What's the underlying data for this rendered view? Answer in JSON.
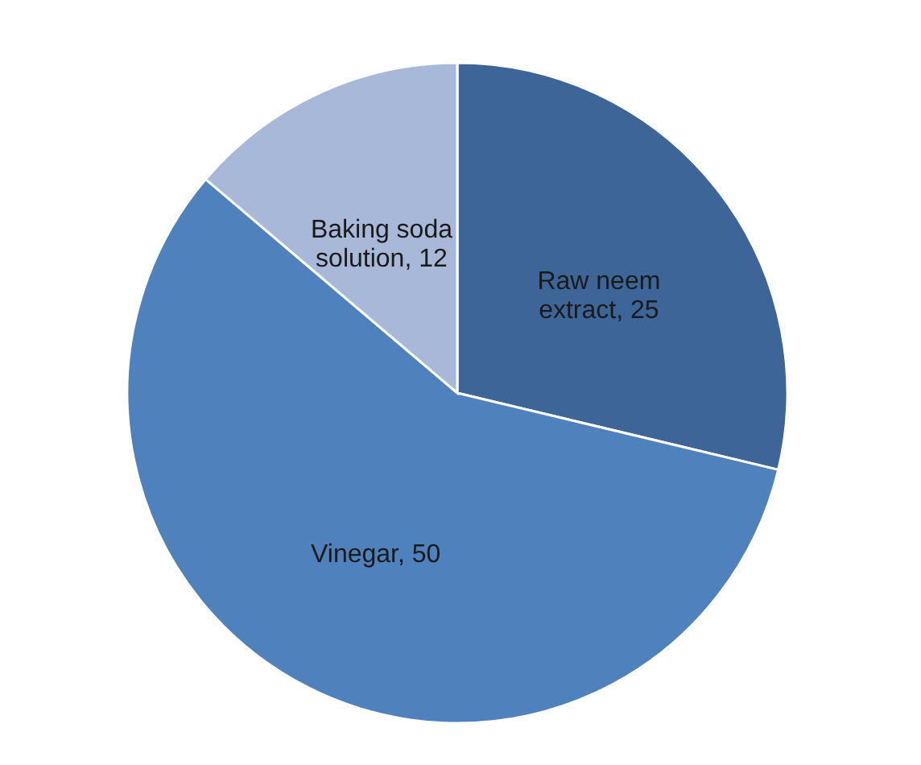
{
  "chart_data": {
    "type": "pie",
    "categories": [
      "Raw neem extract",
      "Vinegar",
      "Baking soda solution"
    ],
    "values": [
      25,
      50,
      12
    ],
    "colors": [
      "#3d6598",
      "#4f81bd",
      "#a8b8d8"
    ],
    "value_labels": [
      ", 25",
      ", 50",
      ", 12"
    ],
    "legend": false
  }
}
